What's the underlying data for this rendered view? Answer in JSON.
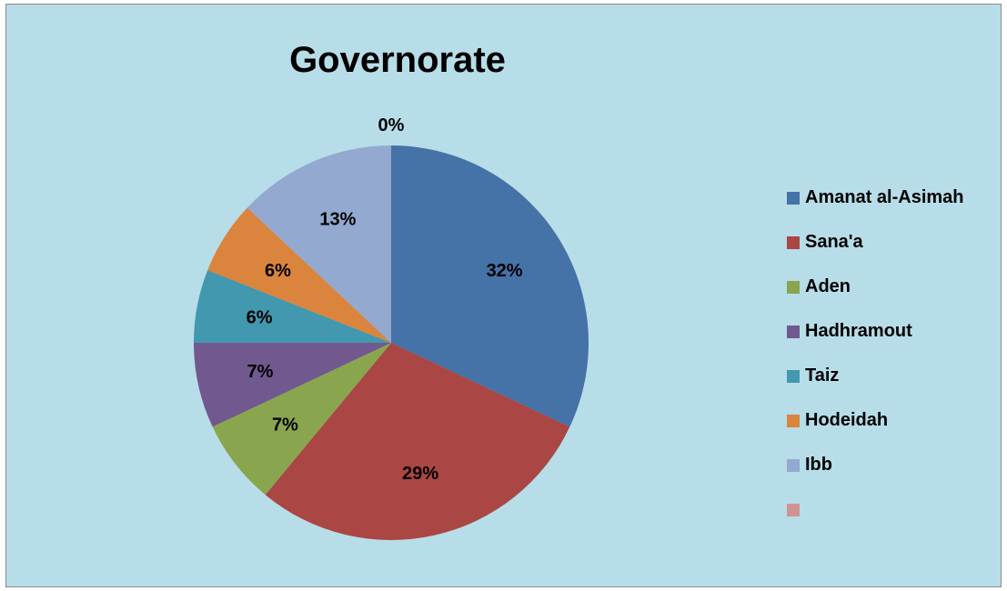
{
  "chart_data": {
    "type": "pie",
    "title": "Governorate",
    "legend_position": "right",
    "slices": [
      {
        "name": "Amanat al-Asimah",
        "value": 32,
        "label": "32%",
        "color": "#4572a7"
      },
      {
        "name": "Sana'a",
        "value": 29,
        "label": "29%",
        "color": "#aa4643"
      },
      {
        "name": "Aden",
        "value": 7,
        "label": "7%",
        "color": "#89a54e"
      },
      {
        "name": "Hadhramout",
        "value": 7,
        "label": "7%",
        "color": "#71588f"
      },
      {
        "name": "Taiz",
        "value": 6,
        "label": "6%",
        "color": "#4198af"
      },
      {
        "name": "Hodeidah",
        "value": 6,
        "label": "6%",
        "color": "#db843d"
      },
      {
        "name": "Ibb",
        "value": 13,
        "label": "13%",
        "color": "#93a9cf"
      },
      {
        "name": "",
        "value": 0,
        "label": "0%",
        "color": "#d19392"
      }
    ]
  }
}
